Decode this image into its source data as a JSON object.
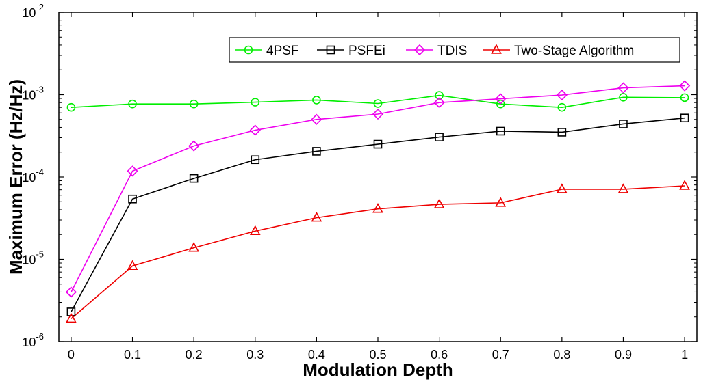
{
  "chart_data": {
    "type": "line",
    "xlabel": "Modulation Depth",
    "ylabel": "Maximum Error (Hz/Hz)",
    "x": [
      0,
      0.1,
      0.2,
      0.3,
      0.4,
      0.5,
      0.6,
      0.7,
      0.8,
      0.9,
      1
    ],
    "x_tick_labels": [
      "0",
      "0.1",
      "0.2",
      "0.3",
      "0.4",
      "0.5",
      "0.6",
      "0.7",
      "0.8",
      "0.9",
      "1"
    ],
    "xlim": [
      -0.02,
      1.02
    ],
    "y_scale": "log",
    "ylim": [
      1e-06,
      0.01
    ],
    "y_ticks": [
      {
        "value": 1e-06,
        "base": "10",
        "exp": "-6"
      },
      {
        "value": 1e-05,
        "base": "10",
        "exp": "-5"
      },
      {
        "value": 0.0001,
        "base": "10",
        "exp": "-4"
      },
      {
        "value": 0.001,
        "base": "10",
        "exp": "-3"
      },
      {
        "value": 0.01,
        "base": "10",
        "exp": "-2"
      }
    ],
    "grid": false,
    "legend_position": "top-right",
    "series": [
      {
        "name": "4PSF",
        "color": "#00ee00",
        "marker": "circle",
        "values": [
          0.0007,
          0.00077,
          0.00077,
          0.00081,
          0.00086,
          0.00078,
          0.00098,
          0.00077,
          0.0007,
          0.00093,
          0.00092
        ]
      },
      {
        "name": "PSFEi",
        "color": "#000000",
        "marker": "square",
        "values": [
          2.3e-06,
          5.4e-05,
          9.6e-05,
          0.000162,
          0.000205,
          0.00025,
          0.000305,
          0.00036,
          0.00035,
          0.00044,
          0.00052
        ]
      },
      {
        "name": "TDIS",
        "color": "#ee00ee",
        "marker": "diamond",
        "values": [
          4e-06,
          0.000118,
          0.000238,
          0.00037,
          0.0005,
          0.00058,
          0.0008,
          0.00089,
          0.00099,
          0.00121,
          0.00128
        ]
      },
      {
        "name": "Two-Stage Algorithm",
        "color": "#ee0000",
        "marker": "triangle",
        "values": [
          1.9e-06,
          8.3e-06,
          1.38e-05,
          2.2e-05,
          3.2e-05,
          4.1e-05,
          4.65e-05,
          4.85e-05,
          7.1e-05,
          7.1e-05,
          7.8e-05
        ]
      }
    ]
  }
}
